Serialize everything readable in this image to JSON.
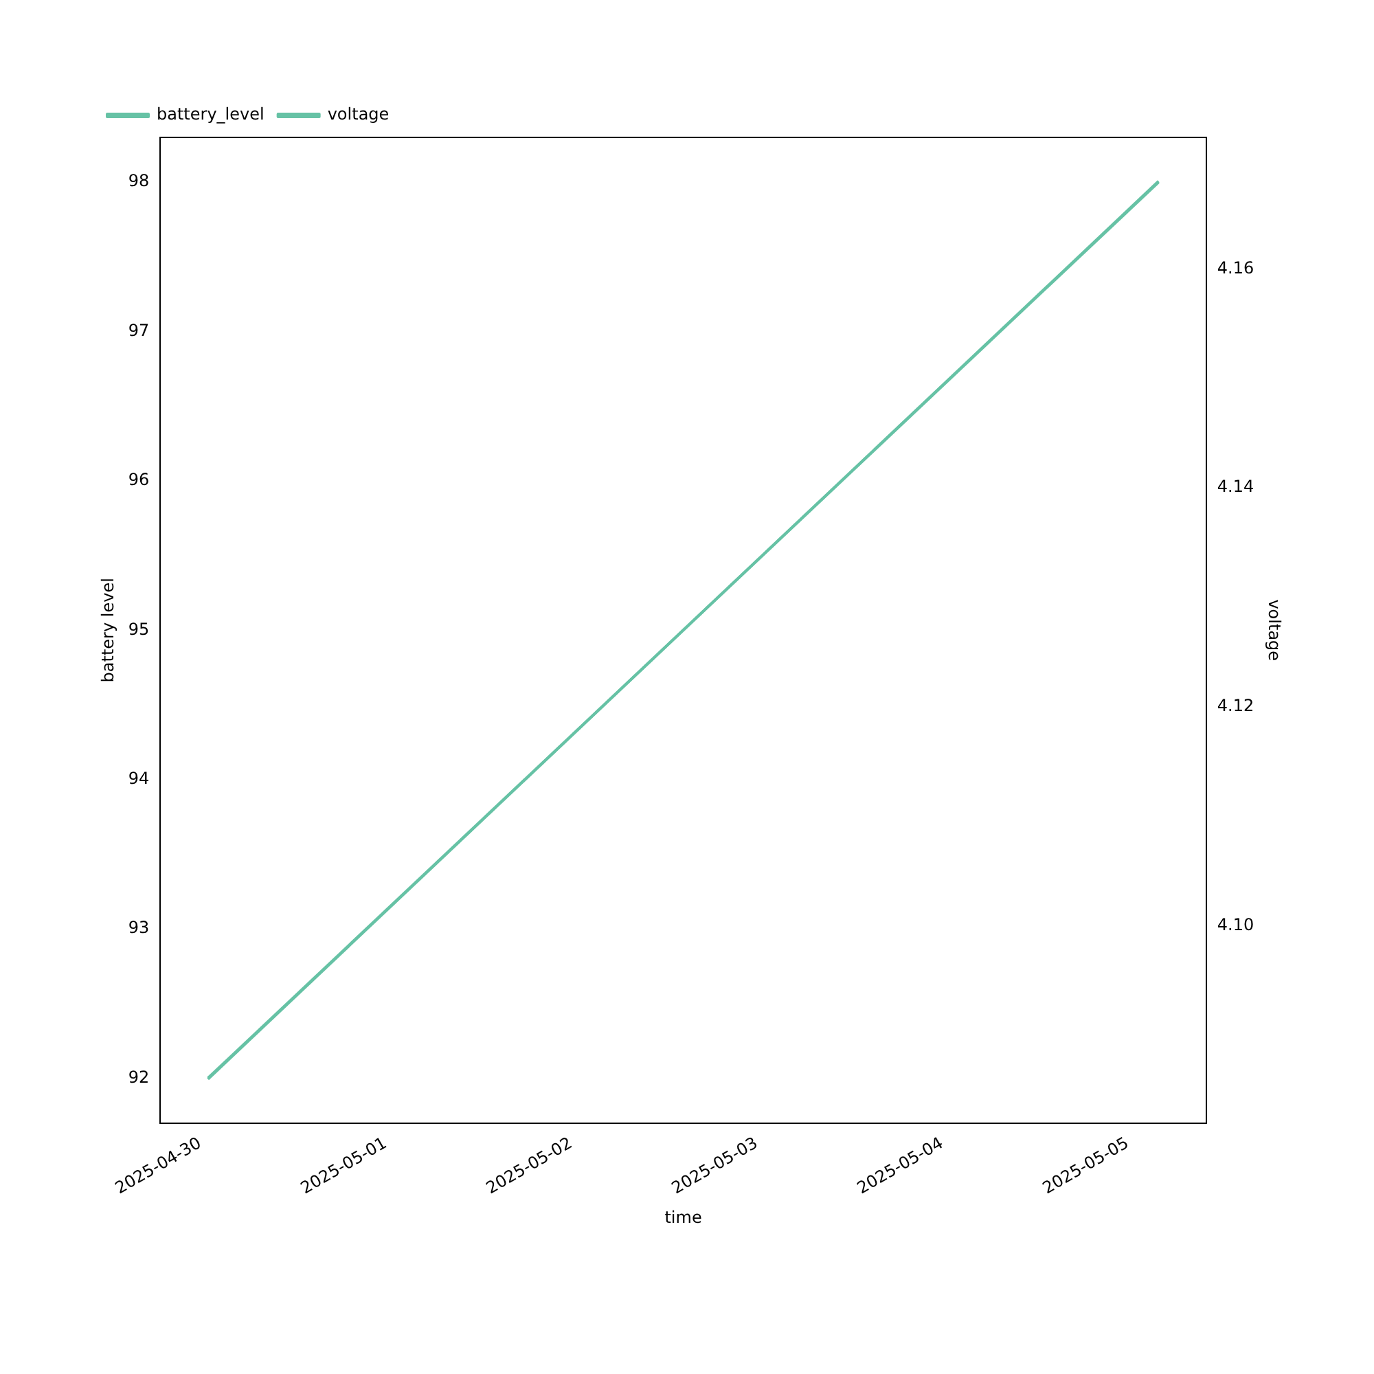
{
  "chart_data": {
    "type": "line",
    "xlabel": "time",
    "ylabel": "battery level",
    "y2label": "voltage",
    "x": [
      "2025-04-30T01:00",
      "2025-05-05T04:00"
    ],
    "series": [
      {
        "name": "battery_level",
        "color": "#66c2a5",
        "values": [
          92,
          98
        ]
      },
      {
        "name": "voltage",
        "color": "#66c2a5",
        "values": [
          4.086,
          4.168
        ],
        "axis": "y2"
      }
    ],
    "xlim": [
      "2025-04-29T18:50",
      "2025-05-05T10:10"
    ],
    "xticks": [
      "2025-04-30",
      "2025-05-01",
      "2025-05-02",
      "2025-05-03",
      "2025-05-04",
      "2025-05-05"
    ],
    "ylim": [
      91.7,
      98.3
    ],
    "yticks": [
      92,
      93,
      94,
      95,
      96,
      97,
      98
    ],
    "y2lim": [
      4.082,
      4.172
    ],
    "y2ticks": [
      {
        "value": 4.1,
        "label": "4.10"
      },
      {
        "value": 4.12,
        "label": "4.12"
      },
      {
        "value": 4.14,
        "label": "4.14"
      },
      {
        "value": 4.16,
        "label": "4.16"
      }
    ],
    "grid": false,
    "legend": "top left",
    "marker": "none",
    "line_style": "solid"
  }
}
